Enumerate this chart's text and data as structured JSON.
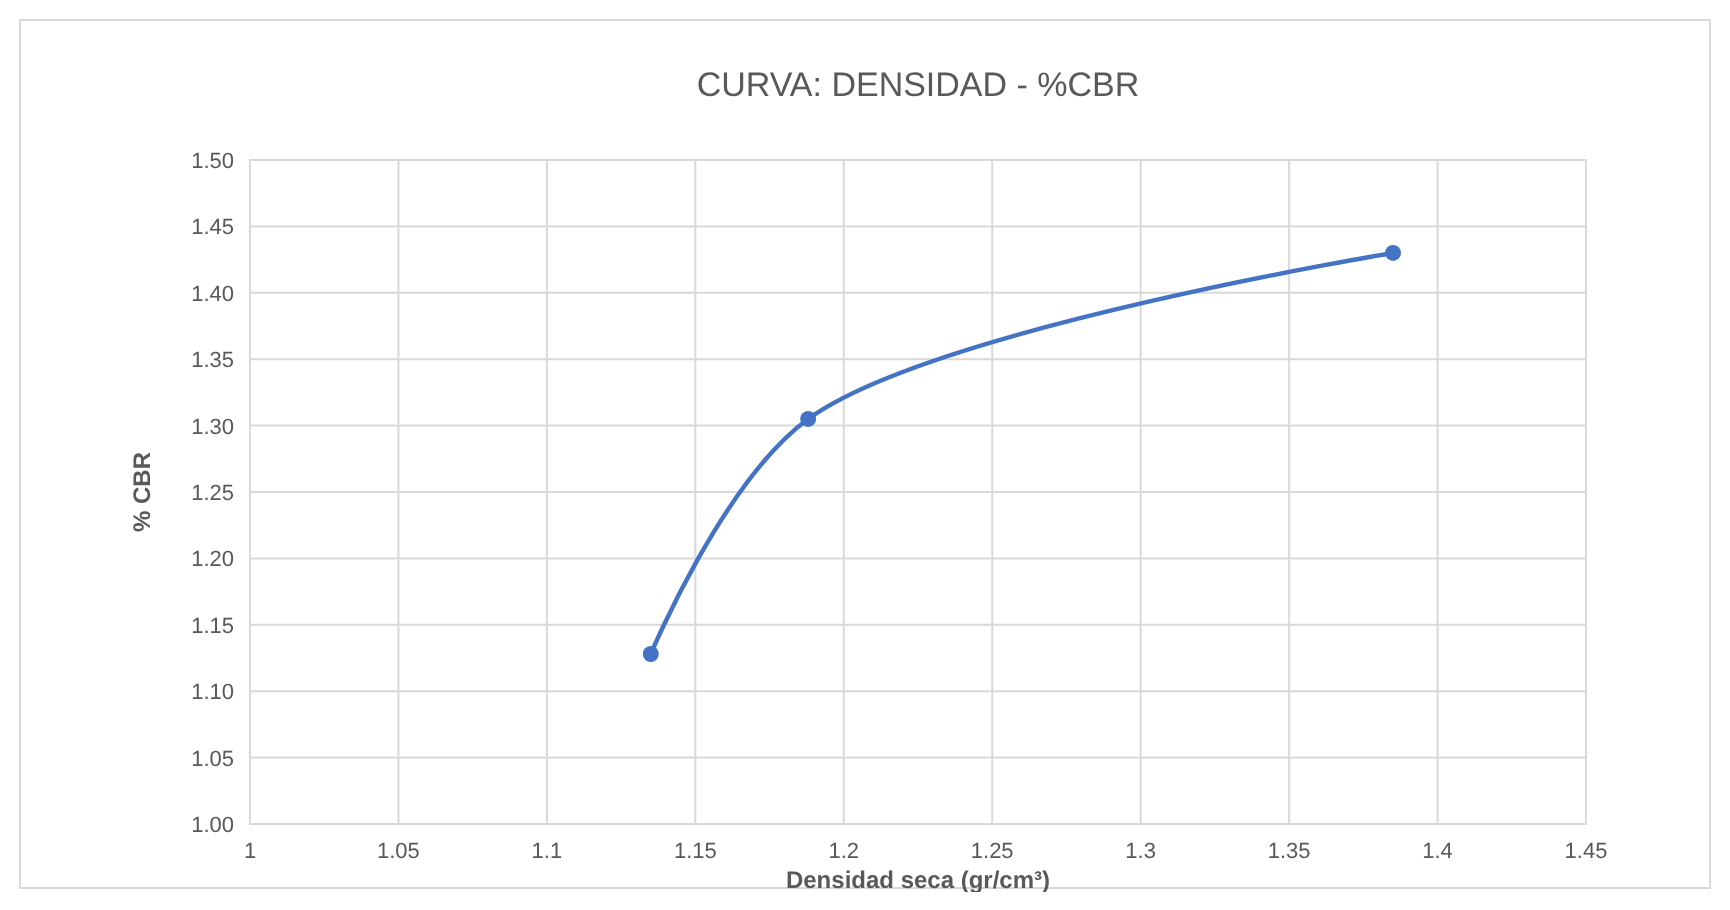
{
  "chart_data": {
    "type": "line",
    "title": "CURVA: DENSIDAD - %CBR",
    "xlabel": "Densidad seca (gr/cm³)",
    "ylabel": "% CBR",
    "x": [
      1.135,
      1.188,
      1.385
    ],
    "series": [
      {
        "color": "#4472c4",
        "values": [
          1.128,
          1.305,
          1.43
        ]
      }
    ],
    "xlim": [
      1,
      1.45
    ],
    "xticks": [
      1,
      1.05,
      1.1,
      1.15,
      1.2,
      1.25,
      1.3,
      1.35,
      1.4,
      1.45
    ],
    "ylim": [
      1,
      1.5
    ],
    "yticks": [
      {
        "value": 1,
        "label": "1.00"
      },
      {
        "value": 1.05,
        "label": "1.05"
      },
      {
        "value": 1.1,
        "label": "1.10"
      },
      {
        "value": 1.15,
        "label": "1.15"
      },
      {
        "value": 1.2,
        "label": "1.20"
      },
      {
        "value": 1.25,
        "label": "1.25"
      },
      {
        "value": 1.3,
        "label": "1.30"
      },
      {
        "value": 1.35,
        "label": "1.35"
      },
      {
        "value": 1.4,
        "label": "1.40"
      },
      {
        "value": 1.45,
        "label": "1.45"
      },
      {
        "value": 1.5,
        "label": "1.50"
      }
    ],
    "grid": true,
    "marker": "circle"
  }
}
